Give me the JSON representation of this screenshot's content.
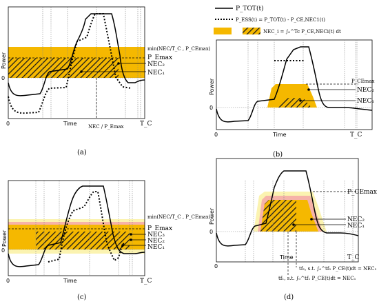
{
  "colors": {
    "nec_fill": "#f5b800",
    "ess_fill": "#f5b800",
    "penalty_fill": "#f6b3a8",
    "light_fill": "#fbf3b0",
    "hatch": "#1a1a1a",
    "line": "#000000"
  },
  "legend": {
    "ptot": "P_TOT(t)",
    "pess": "P_ESS(t) = P_TOT(t) - P_CE,NEC1(t)",
    "nec": "NEC_i = ∫₀^Tc P_CE,NECi(t) dt"
  },
  "panels": [
    {
      "caption": "(a)",
      "ylabel": "Power",
      "xlabel": "Time",
      "tick_zero_x": "0",
      "tick_zero_y": "0",
      "tick_end": "T_C",
      "x_marker": "NEC / P_Emax",
      "labels": [
        "min(NEC/T_C , P_CEmax)",
        "P_Emax",
        "NEC₂",
        "NEC₁"
      ]
    },
    {
      "caption": "(b)",
      "ylabel": "Power",
      "xlabel": "Time",
      "tick_zero_x": "0",
      "tick_zero_y": "0",
      "tick_end": "T_C",
      "labels": [
        "P_CEmax",
        "NEC₂",
        "NEC₁"
      ]
    },
    {
      "caption": "(c)",
      "ylabel": "Power",
      "xlabel": "Time",
      "tick_zero_x": "0",
      "tick_zero_y": "0",
      "tick_end": "T_C",
      "labels": [
        "min(NEC/T_C , P_CEmax)",
        "P_Emax",
        "NEC₃",
        "NEC₂",
        "NEC₁"
      ]
    },
    {
      "caption": "(d)",
      "ylabel": "Power",
      "xlabel": "Time",
      "tick_zero_x": "0",
      "tick_zero_y": "0",
      "tick_end": "T_C",
      "labels": [
        "P_CEmax",
        "NEC₂",
        "NEC₁"
      ],
      "formulas": [
        "tf₂, s.t. ∫₀^tf₂ P_CE(t)dt = NEC₂",
        "tf₁, s.t. ∫₀^tf₁ P_CE(t)dt = NEC₁"
      ]
    }
  ]
}
